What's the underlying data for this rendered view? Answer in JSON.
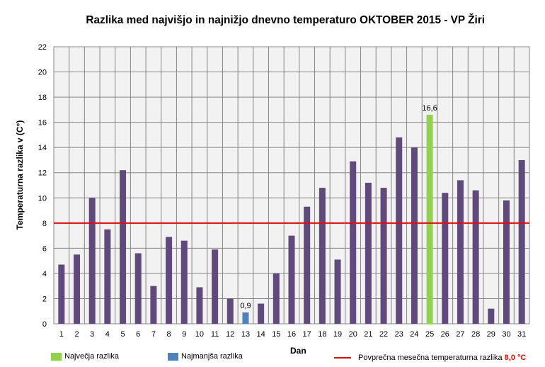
{
  "chart_data": {
    "type": "bar",
    "title": "Razlika med najvišjo  in najnižjo  dnevno  temperaturo  OKTOBER  2015 - VP Žiri",
    "xlabel": "Dan",
    "ylabel": "Temperaturna razlika v (C°)",
    "ylim": [
      0,
      22
    ],
    "yticks": [
      0,
      2,
      4,
      6,
      8,
      10,
      12,
      14,
      16,
      18,
      20,
      22
    ],
    "grid": true,
    "categories": [
      "1",
      "2",
      "3",
      "4",
      "5",
      "6",
      "7",
      "8",
      "9",
      "10",
      "11",
      "12",
      "13",
      "14",
      "15",
      "16",
      "17",
      "18",
      "19",
      "20",
      "21",
      "22",
      "23",
      "24",
      "25",
      "26",
      "27",
      "28",
      "29",
      "30",
      "31"
    ],
    "values": [
      4.7,
      5.5,
      10.0,
      7.5,
      12.2,
      5.6,
      3.0,
      6.9,
      6.6,
      2.9,
      5.9,
      2.0,
      0.9,
      1.6,
      4.0,
      7.0,
      9.3,
      10.8,
      5.1,
      12.9,
      11.2,
      10.8,
      14.8,
      14.0,
      16.6,
      10.4,
      11.4,
      10.6,
      1.2,
      9.8,
      13.0
    ],
    "max_index": 24,
    "min_index": 12,
    "data_labels": {
      "max": "16,6",
      "min": "0,9"
    },
    "average_line": 8.0,
    "colors": {
      "bar": "#604a7b",
      "max": "#92d050",
      "min": "#4f81bd",
      "average": "#ff0000",
      "plot_bg": "#f2f2f2",
      "grid": "#868686"
    },
    "legend": {
      "max_label": "Največja razlika",
      "min_label": "Najmanjša razlika",
      "avg_label": "Povprečna mesečna temperaturna razlika",
      "avg_value": "8,0 °C"
    },
    "legend_position": "bottom"
  }
}
